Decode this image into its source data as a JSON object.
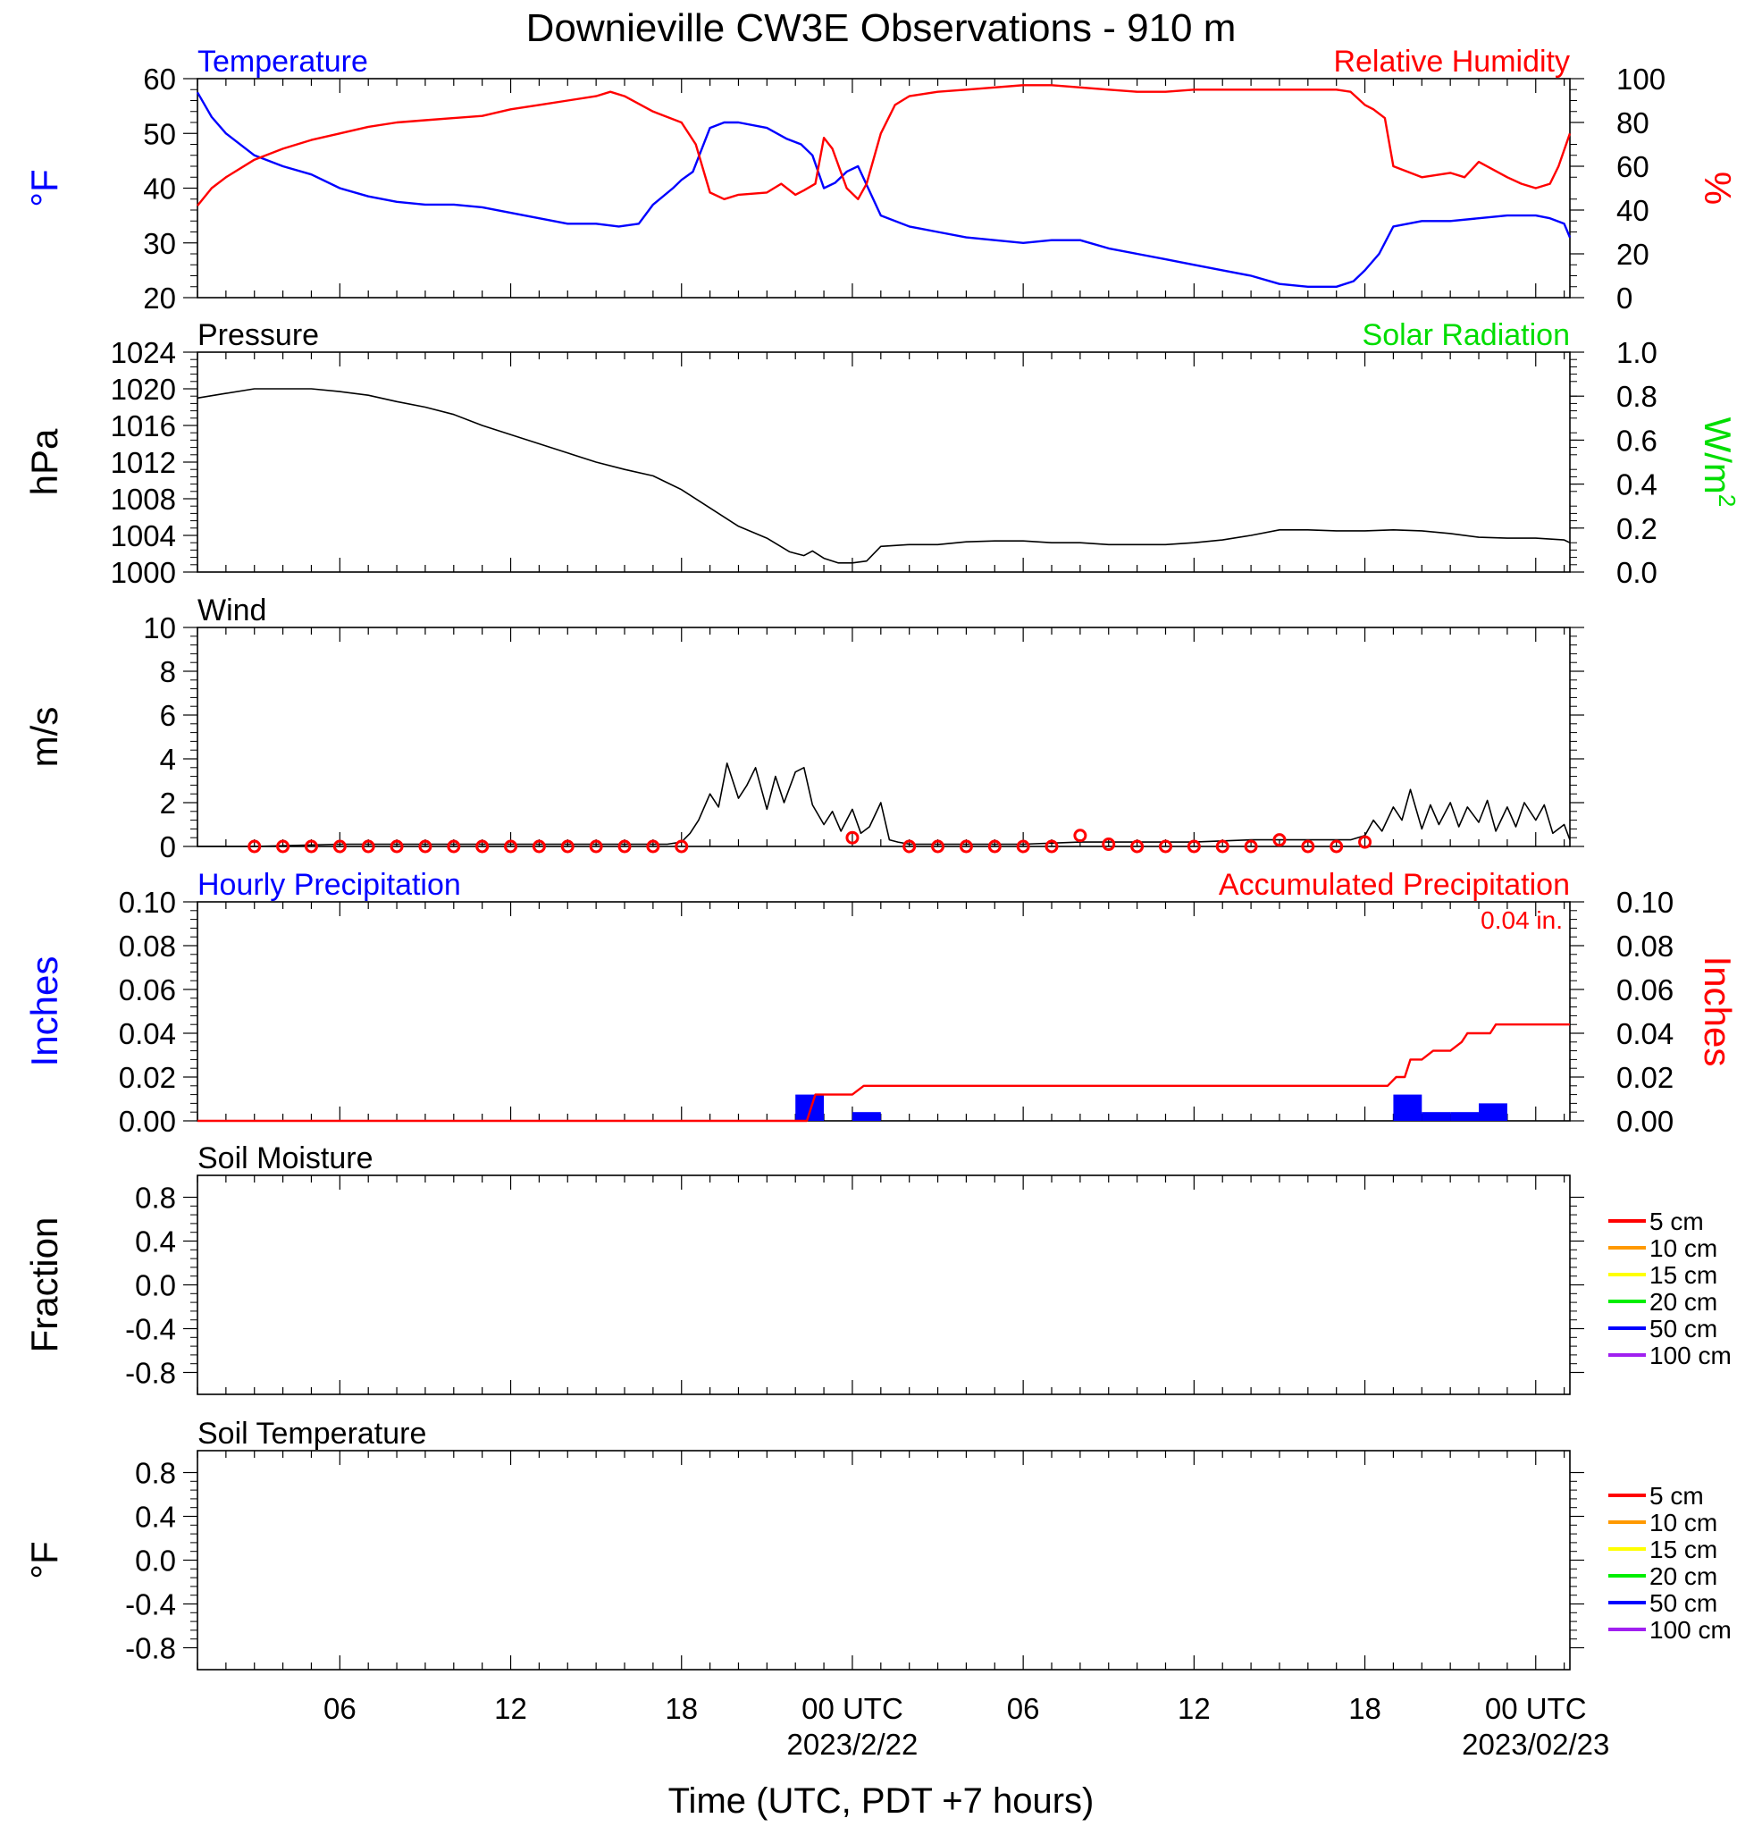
{
  "title": "Downieville CW3E Observations - 910 m",
  "xlabel": "Time (UTC, PDT +7 hours)",
  "x_ticks": [
    {
      "hour": 6,
      "label": "06"
    },
    {
      "hour": 12,
      "label": "12"
    },
    {
      "hour": 18,
      "label": "18"
    },
    {
      "hour": 24,
      "label": "00 UTC",
      "sub": "2023/2/22"
    },
    {
      "hour": 30,
      "label": "06"
    },
    {
      "hour": 36,
      "label": "12"
    },
    {
      "hour": 42,
      "label": "18"
    },
    {
      "hour": 48,
      "label": "00 UTC",
      "sub": "2023/02/23"
    }
  ],
  "colors": {
    "blue": "#0000ff",
    "red": "#ff0000",
    "green": "#00dd00",
    "black": "#000000"
  },
  "soil_legend": [
    {
      "label": "5 cm",
      "color": "#ff0000"
    },
    {
      "label": "10 cm",
      "color": "#ff9900"
    },
    {
      "label": "15 cm",
      "color": "#ffff00"
    },
    {
      "label": "20 cm",
      "color": "#00ee00"
    },
    {
      "label": "50 cm",
      "color": "#0000ff"
    },
    {
      "label": "100 cm",
      "color": "#a020f0"
    }
  ],
  "chart_data": [
    {
      "id": "temp_rh",
      "type": "line",
      "left_title": "Temperature",
      "right_title": "Relative Humidity",
      "ylabel_left": "°F",
      "ylabel_right": "%",
      "ylim_left": [
        20,
        60
      ],
      "ylim_right": [
        0,
        100
      ],
      "yticks_left": [
        "20",
        "30",
        "40",
        "50",
        "60"
      ],
      "yticks_right": [
        "0",
        "20",
        "40",
        "60",
        "80",
        "100"
      ],
      "xlim_hours": [
        1,
        49.2
      ],
      "series": [
        {
          "name": "Temperature",
          "axis": "left",
          "color": "#0000ff",
          "x": [
            1,
            1.5,
            2,
            3,
            4,
            5,
            6,
            7,
            8,
            9,
            10,
            11,
            12,
            13,
            14,
            15,
            15.8,
            16.5,
            17,
            17.7,
            18,
            18.4,
            19,
            19.5,
            20,
            21,
            21.7,
            22.2,
            22.6,
            23,
            23.4,
            23.8,
            24.2,
            25,
            26,
            27,
            28,
            29,
            30,
            31,
            32,
            33,
            34,
            35,
            36,
            37,
            38,
            39,
            40,
            41,
            41.6,
            42,
            42.5,
            43,
            44,
            45,
            46,
            47,
            48,
            48.5,
            49,
            49.2
          ],
          "y": [
            57.5,
            53,
            50,
            46,
            44,
            42.5,
            40,
            38.5,
            37.5,
            37,
            37,
            36.5,
            35.5,
            34.5,
            33.5,
            33.5,
            33,
            33.5,
            37,
            40,
            41.5,
            43,
            51,
            52,
            52,
            51,
            49,
            48,
            46,
            40,
            41,
            43,
            44,
            35,
            33,
            32,
            31,
            30.5,
            30,
            30.5,
            30.5,
            29,
            28,
            27,
            26,
            25,
            24,
            22.5,
            22,
            22,
            23,
            25,
            28,
            33,
            34,
            34,
            34.5,
            35,
            35,
            34.5,
            33.5,
            31
          ]
        },
        {
          "name": "Relative Humidity",
          "axis": "right",
          "color": "#ff0000",
          "x": [
            1,
            1.5,
            2,
            3,
            4,
            5,
            6,
            7,
            8,
            9,
            10,
            11,
            12,
            13,
            14,
            15,
            15.5,
            16,
            17,
            18,
            18.5,
            19,
            19.5,
            20,
            21,
            21.5,
            22,
            22.3,
            22.7,
            23,
            23.3,
            23.8,
            24.2,
            24.5,
            25,
            25.5,
            26,
            27,
            28,
            29,
            30,
            31,
            32,
            33,
            34,
            35,
            36,
            37,
            38,
            39,
            40,
            41,
            41.5,
            42,
            42.3,
            42.7,
            43,
            44,
            45,
            45.5,
            46,
            47,
            47.5,
            48,
            48.5,
            48.8,
            49.2
          ],
          "y": [
            42,
            50,
            55,
            63,
            68,
            72,
            75,
            78,
            80,
            81,
            82,
            83,
            86,
            88,
            90,
            92,
            94,
            92,
            85,
            80,
            70,
            48,
            45,
            47,
            48,
            52,
            47,
            49,
            52,
            73,
            68,
            50,
            45,
            52,
            75,
            88,
            92,
            94,
            95,
            96,
            97,
            97,
            96,
            95,
            94,
            94,
            95,
            95,
            95,
            95,
            95,
            95,
            94,
            88,
            86,
            82,
            60,
            55,
            57,
            55,
            62,
            55,
            52,
            50,
            52,
            60,
            75
          ]
        }
      ]
    },
    {
      "id": "pressure",
      "type": "line",
      "left_title": "Pressure",
      "right_title": "Solar Radiation",
      "ylabel_left": "hPa",
      "ylabel_right": "W/m",
      "ylabel_right_sup": "2",
      "ylim_left": [
        1000,
        1024
      ],
      "ylim_right": [
        0,
        1
      ],
      "yticks_left": [
        "1000",
        "1004",
        "1008",
        "1012",
        "1016",
        "1020",
        "1024"
      ],
      "yticks_right": [
        "0.0",
        "0.2",
        "0.4",
        "0.6",
        "0.8",
        "1.0"
      ],
      "xlim_hours": [
        1,
        49.2
      ],
      "series": [
        {
          "name": "Pressure",
          "axis": "left",
          "color": "#000000",
          "x": [
            1,
            2,
            3,
            4,
            5,
            6,
            7,
            8,
            9,
            10,
            11,
            12,
            13,
            14,
            15,
            16,
            17,
            18,
            19,
            20,
            21,
            21.8,
            22.3,
            22.6,
            23,
            23.5,
            24,
            24.5,
            25,
            26,
            27,
            28,
            29,
            30,
            31,
            32,
            33,
            34,
            35,
            36,
            37,
            38,
            39,
            40,
            41,
            42,
            43,
            44,
            45,
            46,
            47,
            48,
            49,
            49.2
          ],
          "y": [
            1019,
            1019.5,
            1020,
            1020,
            1020,
            1019.7,
            1019.3,
            1018.6,
            1018,
            1017.2,
            1016,
            1015,
            1014,
            1013,
            1012,
            1011.2,
            1010.5,
            1009,
            1007,
            1005,
            1003.7,
            1002.2,
            1001.8,
            1002.3,
            1001.5,
            1001,
            1001,
            1001.2,
            1002.8,
            1003,
            1003,
            1003.3,
            1003.4,
            1003.4,
            1003.2,
            1003.2,
            1003,
            1003,
            1003,
            1003.2,
            1003.5,
            1004,
            1004.6,
            1004.6,
            1004.5,
            1004.5,
            1004.6,
            1004.5,
            1004.2,
            1003.8,
            1003.7,
            1003.7,
            1003.5,
            1003.2
          ]
        }
      ]
    },
    {
      "id": "wind",
      "type": "line",
      "left_title": "Wind",
      "ylabel_left": "m/s",
      "ylim_left": [
        0,
        10
      ],
      "yticks_left": [
        "0",
        "2",
        "4",
        "6",
        "8",
        "10"
      ],
      "xlim_hours": [
        1,
        49.2
      ],
      "series": [
        {
          "name": "Wind",
          "axis": "left",
          "color": "#000000",
          "x": [
            1,
            3,
            6,
            9,
            12,
            15,
            17.5,
            18,
            18.3,
            18.6,
            19,
            19.3,
            19.6,
            20,
            20.3,
            20.6,
            21,
            21.3,
            21.6,
            22,
            22.3,
            22.6,
            23,
            23.3,
            23.6,
            24,
            24.3,
            24.6,
            25,
            25.3,
            25.6,
            26,
            28,
            30,
            32,
            34,
            36,
            38,
            40,
            41.5,
            42,
            42.3,
            42.6,
            43,
            43.3,
            43.6,
            44,
            44.3,
            44.6,
            45,
            45.3,
            45.6,
            46,
            46.3,
            46.6,
            47,
            47.3,
            47.6,
            48,
            48.3,
            48.6,
            49,
            49.2
          ],
          "y": [
            0,
            0,
            0.1,
            0.1,
            0.1,
            0.1,
            0.1,
            0.2,
            0.6,
            1.2,
            2.4,
            1.8,
            3.8,
            2.2,
            2.8,
            3.6,
            1.7,
            3.2,
            2.0,
            3.4,
            3.6,
            1.9,
            1.0,
            1.6,
            0.7,
            1.7,
            0.6,
            0.9,
            2.0,
            0.3,
            0.2,
            0.1,
            0.1,
            0.1,
            0.2,
            0.2,
            0.2,
            0.3,
            0.3,
            0.3,
            0.5,
            1.2,
            0.7,
            1.8,
            1.2,
            2.6,
            0.8,
            1.9,
            1.0,
            2.0,
            0.9,
            1.8,
            1.1,
            2.1,
            0.7,
            1.8,
            0.9,
            2.0,
            1.2,
            1.9,
            0.6,
            1.0,
            0.3
          ]
        }
      ],
      "wind_points_hours": [
        3,
        4,
        5,
        6,
        7,
        8,
        9,
        10,
        11,
        12,
        13,
        14,
        15,
        16,
        17,
        18,
        24,
        26,
        27,
        28,
        29,
        30,
        31,
        32,
        33,
        34,
        35,
        36,
        37,
        38,
        39,
        40,
        41,
        42
      ],
      "wind_points_speed": [
        0,
        0,
        0,
        0,
        0,
        0,
        0,
        0,
        0,
        0,
        0,
        0,
        0,
        0,
        0,
        0,
        0.4,
        0,
        0,
        0,
        0,
        0,
        0,
        0.5,
        0.1,
        0,
        0,
        0,
        0,
        0,
        0.3,
        0,
        0,
        0.2
      ]
    },
    {
      "id": "precip",
      "type": "bar",
      "left_title": "Hourly Precipitation",
      "right_title": "Accumulated Precipitation",
      "annotation": "0.04 in.",
      "ylabel_left": "Inches",
      "ylabel_right": "Inches",
      "ylim_left": [
        0,
        0.1
      ],
      "ylim_right": [
        0,
        0.1
      ],
      "yticks_left": [
        "0.00",
        "0.02",
        "0.04",
        "0.06",
        "0.08",
        "0.10"
      ],
      "yticks_right": [
        "0.00",
        "0.02",
        "0.04",
        "0.06",
        "0.08",
        "0.10"
      ],
      "xlim_hours": [
        1,
        49.2
      ],
      "bars": {
        "start_hours": [
          22,
          24,
          43,
          44,
          45,
          46
        ],
        "values": [
          0.012,
          0.004,
          0.012,
          0.004,
          0.004,
          0.008
        ]
      },
      "series": [
        {
          "name": "Accumulated Precipitation",
          "axis": "right",
          "color": "#ff0000",
          "x": [
            1,
            22.4,
            22.7,
            23,
            24,
            24.4,
            24.4,
            42.8,
            43.1,
            43.4,
            43.6,
            44,
            44.4,
            44.6,
            45,
            45.4,
            45.6,
            46,
            46.4,
            46.6,
            49.2
          ],
          "y": [
            0,
            0,
            0.012,
            0.012,
            0.012,
            0.016,
            0.016,
            0.016,
            0.02,
            0.02,
            0.028,
            0.028,
            0.032,
            0.032,
            0.032,
            0.036,
            0.04,
            0.04,
            0.04,
            0.044,
            0.044
          ]
        }
      ]
    },
    {
      "id": "soil_moisture",
      "type": "line",
      "left_title": "Soil Moisture",
      "ylabel_left": "Fraction",
      "ylim_left": [
        -1,
        1
      ],
      "yticks_left": [
        "-0.8",
        "-0.4",
        "0.0",
        "0.4",
        "0.8"
      ],
      "series": []
    },
    {
      "id": "soil_temperature",
      "type": "line",
      "left_title": "Soil Temperature",
      "ylabel_left": "°F",
      "ylim_left": [
        -1,
        1
      ],
      "yticks_left": [
        "-0.8",
        "-0.4",
        "0.0",
        "0.4",
        "0.8"
      ],
      "series": []
    }
  ]
}
